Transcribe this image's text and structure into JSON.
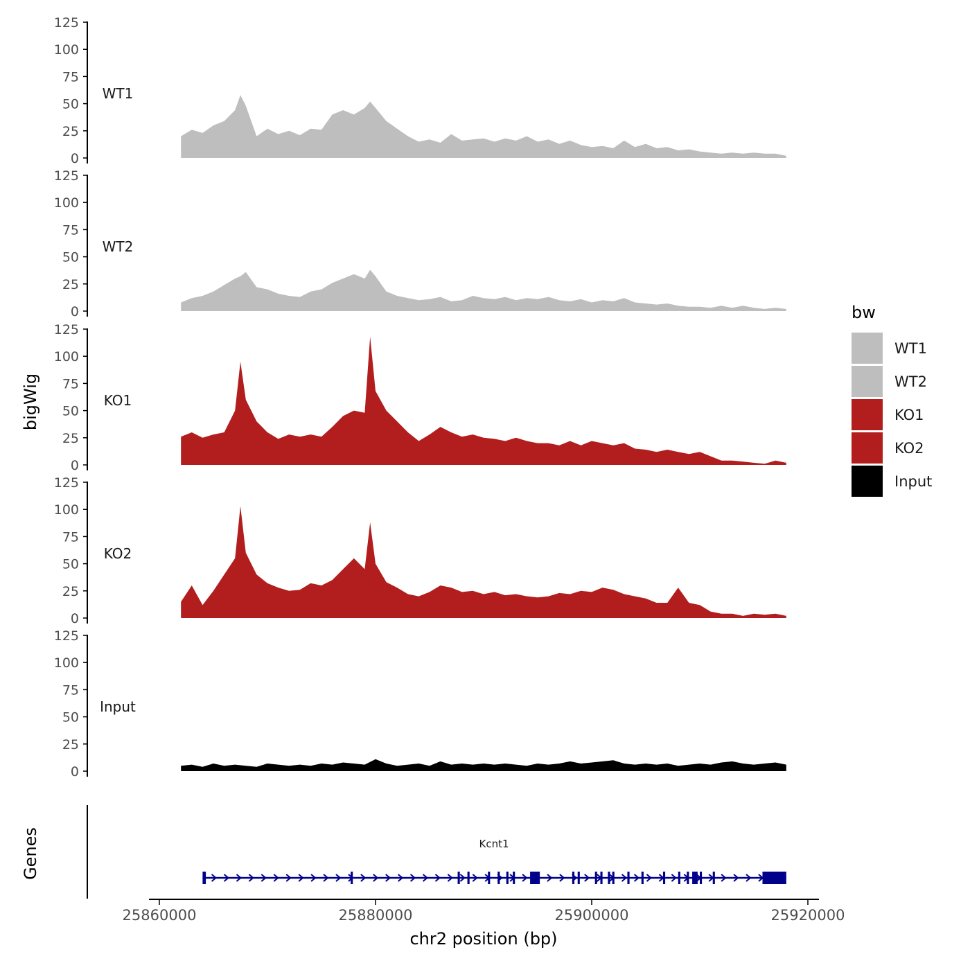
{
  "colors": {
    "WT": "#bebebe",
    "KO": "#b21e1e",
    "Input": "#000000",
    "gene": "#00008b",
    "axis": "#000000",
    "tick_text": "#4d4d4d"
  },
  "chart_data": {
    "type": "area",
    "x_range": [
      25862000,
      25918000
    ],
    "y_axis_title": "bigWig",
    "x_axis_title": "chr2 position (bp)",
    "x_ticks": [
      {
        "value": 25860000,
        "label": "25860000"
      },
      {
        "value": 25880000,
        "label": "25880000"
      },
      {
        "value": 25900000,
        "label": "25900000"
      },
      {
        "value": 25920000,
        "label": "25920000"
      }
    ],
    "y_ticks": [
      {
        "value": 0,
        "label": "0"
      },
      {
        "value": 25,
        "label": "25"
      },
      {
        "value": 50,
        "label": "50"
      },
      {
        "value": 75,
        "label": "75"
      },
      {
        "value": 100,
        "label": "100"
      },
      {
        "value": 125,
        "label": "125"
      }
    ],
    "ylim": [
      0,
      125
    ],
    "tracks": [
      {
        "name": "WT1",
        "color_key": "WT",
        "x": [
          25862000,
          25863000,
          25864000,
          25865000,
          25866000,
          25867000,
          25867500,
          25868000,
          25869000,
          25870000,
          25871000,
          25872000,
          25873000,
          25874000,
          25875000,
          25876000,
          25877000,
          25878000,
          25879000,
          25879500,
          25880000,
          25881000,
          25882000,
          25883000,
          25884000,
          25885000,
          25886000,
          25887000,
          25888000,
          25889000,
          25890000,
          25891000,
          25892000,
          25893000,
          25894000,
          25895000,
          25896000,
          25897000,
          25898000,
          25899000,
          25900000,
          25901000,
          25902000,
          25903000,
          25904000,
          25905000,
          25906000,
          25907000,
          25908000,
          25909000,
          25910000,
          25911000,
          25912000,
          25913000,
          25914000,
          25915000,
          25916000,
          25917000,
          25918000
        ],
        "values": [
          20,
          26,
          23,
          30,
          34,
          44,
          58,
          48,
          20,
          27,
          22,
          25,
          21,
          27,
          26,
          40,
          44,
          40,
          46,
          52,
          46,
          34,
          27,
          20,
          15,
          17,
          14,
          22,
          16,
          17,
          18,
          15,
          18,
          16,
          20,
          15,
          17,
          13,
          16,
          12,
          10,
          11,
          9,
          16,
          10,
          13,
          9,
          10,
          7,
          8,
          6,
          5,
          4,
          5,
          4,
          5,
          4,
          4,
          2
        ]
      },
      {
        "name": "WT2",
        "color_key": "WT",
        "x": [
          25862000,
          25863000,
          25864000,
          25865000,
          25866000,
          25867000,
          25867500,
          25868000,
          25869000,
          25870000,
          25871000,
          25872000,
          25873000,
          25874000,
          25875000,
          25876000,
          25877000,
          25878000,
          25879000,
          25879500,
          25880000,
          25881000,
          25882000,
          25883000,
          25884000,
          25885000,
          25886000,
          25887000,
          25888000,
          25889000,
          25890000,
          25891000,
          25892000,
          25893000,
          25894000,
          25895000,
          25896000,
          25897000,
          25898000,
          25899000,
          25900000,
          25901000,
          25902000,
          25903000,
          25904000,
          25905000,
          25906000,
          25907000,
          25908000,
          25909000,
          25910000,
          25911000,
          25912000,
          25913000,
          25914000,
          25915000,
          25916000,
          25917000,
          25918000
        ],
        "values": [
          8,
          12,
          14,
          18,
          24,
          30,
          32,
          36,
          22,
          20,
          16,
          14,
          13,
          18,
          20,
          26,
          30,
          34,
          30,
          38,
          32,
          18,
          14,
          12,
          10,
          11,
          13,
          9,
          10,
          14,
          12,
          11,
          13,
          10,
          12,
          11,
          13,
          10,
          9,
          11,
          8,
          10,
          9,
          12,
          8,
          7,
          6,
          7,
          5,
          4,
          4,
          3,
          5,
          3,
          5,
          3,
          2,
          3,
          2
        ]
      },
      {
        "name": "KO1",
        "color_key": "KO",
        "x": [
          25862000,
          25863000,
          25864000,
          25865000,
          25866000,
          25867000,
          25867500,
          25868000,
          25869000,
          25870000,
          25871000,
          25872000,
          25873000,
          25874000,
          25875000,
          25876000,
          25877000,
          25878000,
          25879000,
          25879500,
          25880000,
          25881000,
          25882000,
          25883000,
          25884000,
          25885000,
          25886000,
          25887000,
          25888000,
          25889000,
          25890000,
          25891000,
          25892000,
          25893000,
          25894000,
          25895000,
          25896000,
          25897000,
          25898000,
          25899000,
          25900000,
          25901000,
          25902000,
          25903000,
          25904000,
          25905000,
          25906000,
          25907000,
          25908000,
          25909000,
          25910000,
          25911000,
          25912000,
          25913000,
          25914000,
          25915000,
          25916000,
          25917000,
          25918000
        ],
        "values": [
          26,
          30,
          25,
          28,
          30,
          50,
          95,
          60,
          40,
          30,
          24,
          28,
          26,
          28,
          26,
          35,
          45,
          50,
          48,
          118,
          68,
          50,
          40,
          30,
          22,
          28,
          35,
          30,
          26,
          28,
          25,
          24,
          22,
          25,
          22,
          20,
          20,
          18,
          22,
          18,
          22,
          20,
          18,
          20,
          15,
          14,
          12,
          14,
          12,
          10,
          12,
          8,
          4,
          4,
          3,
          2,
          1,
          4,
          2
        ]
      },
      {
        "name": "KO2",
        "color_key": "KO",
        "x": [
          25862000,
          25863000,
          25864000,
          25865000,
          25866000,
          25867000,
          25867500,
          25868000,
          25869000,
          25870000,
          25871000,
          25872000,
          25873000,
          25874000,
          25875000,
          25876000,
          25877000,
          25878000,
          25879000,
          25879500,
          25880000,
          25881000,
          25882000,
          25883000,
          25884000,
          25885000,
          25886000,
          25887000,
          25888000,
          25889000,
          25890000,
          25891000,
          25892000,
          25893000,
          25894000,
          25895000,
          25896000,
          25897000,
          25898000,
          25899000,
          25900000,
          25901000,
          25902000,
          25903000,
          25904000,
          25905000,
          25906000,
          25907000,
          25908000,
          25909000,
          25910000,
          25911000,
          25912000,
          25913000,
          25914000,
          25915000,
          25916000,
          25917000,
          25918000
        ],
        "values": [
          15,
          30,
          12,
          25,
          40,
          55,
          103,
          60,
          40,
          32,
          28,
          25,
          26,
          32,
          30,
          35,
          45,
          55,
          45,
          88,
          50,
          33,
          28,
          22,
          20,
          24,
          30,
          28,
          24,
          25,
          22,
          24,
          21,
          22,
          20,
          19,
          20,
          23,
          22,
          25,
          24,
          28,
          26,
          22,
          20,
          18,
          14,
          14,
          28,
          14,
          12,
          6,
          4,
          4,
          2,
          4,
          3,
          4,
          2
        ]
      },
      {
        "name": "Input",
        "color_key": "Input",
        "x": [
          25862000,
          25863000,
          25864000,
          25865000,
          25866000,
          25867000,
          25868000,
          25869000,
          25870000,
          25871000,
          25872000,
          25873000,
          25874000,
          25875000,
          25876000,
          25877000,
          25878000,
          25879000,
          25880000,
          25881000,
          25882000,
          25883000,
          25884000,
          25885000,
          25886000,
          25887000,
          25888000,
          25889000,
          25890000,
          25891000,
          25892000,
          25893000,
          25894000,
          25895000,
          25896000,
          25897000,
          25898000,
          25899000,
          25900000,
          25901000,
          25902000,
          25903000,
          25904000,
          25905000,
          25906000,
          25907000,
          25908000,
          25909000,
          25910000,
          25911000,
          25912000,
          25913000,
          25914000,
          25915000,
          25916000,
          25917000,
          25918000
        ],
        "values": [
          5,
          6,
          4,
          7,
          5,
          6,
          5,
          4,
          7,
          6,
          5,
          6,
          5,
          7,
          6,
          8,
          7,
          6,
          11,
          7,
          5,
          6,
          7,
          5,
          9,
          6,
          7,
          6,
          7,
          6,
          7,
          6,
          5,
          7,
          6,
          7,
          9,
          7,
          8,
          9,
          10,
          7,
          6,
          7,
          6,
          7,
          5,
          6,
          7,
          6,
          8,
          9,
          7,
          6,
          7,
          8,
          6
        ]
      }
    ],
    "legend": {
      "title": "bw",
      "position": "right",
      "items": [
        {
          "label": "WT1",
          "color_key": "WT"
        },
        {
          "label": "WT2",
          "color_key": "WT"
        },
        {
          "label": "KO1",
          "color_key": "KO"
        },
        {
          "label": "KO2",
          "color_key": "KO"
        },
        {
          "label": "Input",
          "color_key": "Input"
        }
      ]
    },
    "gene_track": {
      "title": "Genes",
      "gene": "Kcnt1",
      "start": 25864000,
      "end": 25918000,
      "strand": "+",
      "exons": [
        {
          "start": 25864000,
          "end": 25864300
        },
        {
          "start": 25877700,
          "end": 25877900
        },
        {
          "start": 25887600,
          "end": 25887800
        },
        {
          "start": 25888500,
          "end": 25888700
        },
        {
          "start": 25890400,
          "end": 25890600
        },
        {
          "start": 25891300,
          "end": 25891500
        },
        {
          "start": 25892100,
          "end": 25892300
        },
        {
          "start": 25892700,
          "end": 25892900
        },
        {
          "start": 25894300,
          "end": 25895200
        },
        {
          "start": 25898200,
          "end": 25898400
        },
        {
          "start": 25898700,
          "end": 25898900
        },
        {
          "start": 25900300,
          "end": 25900500
        },
        {
          "start": 25900800,
          "end": 25901000
        },
        {
          "start": 25901500,
          "end": 25901700
        },
        {
          "start": 25901900,
          "end": 25902100
        },
        {
          "start": 25903300,
          "end": 25903500
        },
        {
          "start": 25904600,
          "end": 25904800
        },
        {
          "start": 25906600,
          "end": 25906800
        },
        {
          "start": 25908000,
          "end": 25908200
        },
        {
          "start": 25908800,
          "end": 25909000
        },
        {
          "start": 25909300,
          "end": 25909800
        },
        {
          "start": 25910000,
          "end": 25910200
        },
        {
          "start": 25911200,
          "end": 25911400
        },
        {
          "start": 25915800,
          "end": 25918000
        }
      ]
    }
  }
}
